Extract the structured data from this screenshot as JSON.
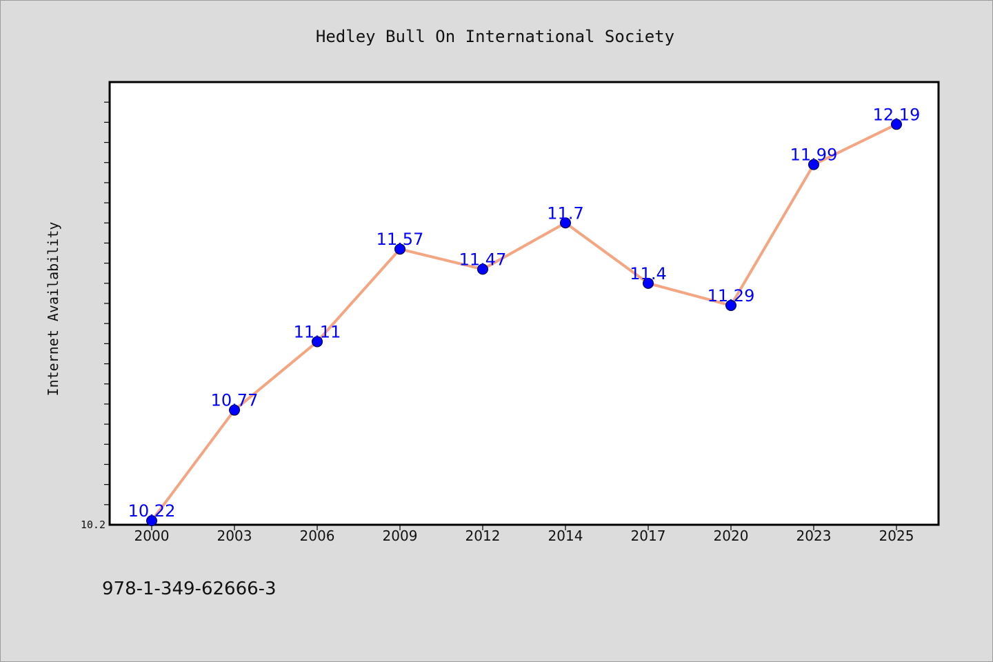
{
  "chart_data": {
    "type": "line",
    "title": "Hedley Bull On International Society",
    "xlabel": "",
    "ylabel": "Internet Availability",
    "categories": [
      "2000",
      "2003",
      "2006",
      "2009",
      "2012",
      "2014",
      "2017",
      "2020",
      "2023",
      "2025"
    ],
    "values": [
      10.22,
      10.77,
      11.11,
      11.57,
      11.47,
      11.7,
      11.4,
      11.29,
      11.99,
      12.19
    ],
    "data_labels": [
      "10.22",
      "10.77",
      "11.11",
      "11.57",
      "11.47",
      "11.7",
      "11.4",
      "11.29",
      "11.99",
      "12.19"
    ],
    "ylim": [
      10.2,
      12.4
    ],
    "y_tick_labels": [
      "10.2"
    ],
    "grid": false,
    "colors": {
      "line": "#f4a582",
      "marker": "#0000ff",
      "label": "#0000ff",
      "background": "#dcdcdc",
      "plot": "#ffffff"
    }
  },
  "footer": {
    "isbn": "978-1-349-62666-3"
  }
}
